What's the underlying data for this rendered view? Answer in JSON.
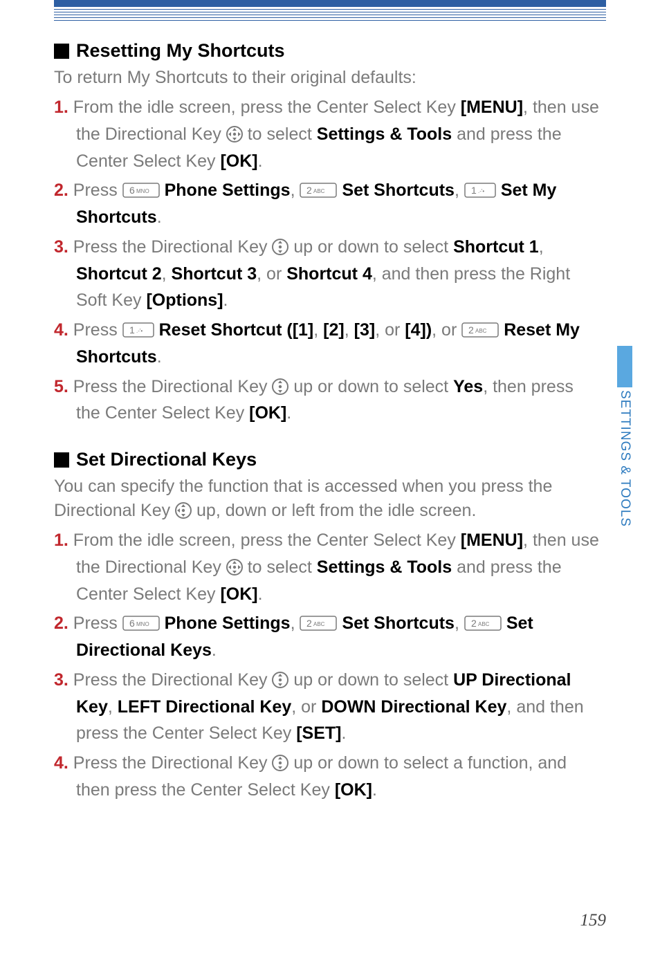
{
  "section1": {
    "title": "Resetting My Shortcuts",
    "intro": "To return My Shortcuts to their original defaults:",
    "steps": [
      {
        "n": "1.",
        "pre": "From the idle screen, press the Center Select Key ",
        "b1": "[MENU]",
        "mid1": ", then use the Directional Key ",
        "icon": "dpad4",
        "mid2": " to select ",
        "b2": "Settings & Tools",
        "mid3": " and press the Center Select Key ",
        "b3": "[OK]",
        "tail": "."
      },
      {
        "n": "2.",
        "pre": "Press ",
        "k1": "6MNO",
        "b1": "Phone Settings",
        "mid1": ", ",
        "k2": "2ABC",
        "b2": "Set Shortcuts",
        "mid2": ", ",
        "k3": "1",
        "b3": "Set My Shortcuts",
        "tail": "."
      },
      {
        "n": "3.",
        "pre": "Press the Directional Key ",
        "icon": "dpad2",
        "mid1": " up or down to select ",
        "b1": "Shortcut 1",
        "mid2": ", ",
        "b2": "Shortcut 2",
        "mid3": ", ",
        "b3": "Shortcut 3",
        "mid4": ", or ",
        "b4": "Shortcut 4",
        "mid5": ", and then press the Right Soft Key ",
        "b5": "[Options]",
        "tail": "."
      },
      {
        "n": "4.",
        "pre": "Press ",
        "k1": "1",
        "b1": "Reset Shortcut ([1]",
        "mid1": ", ",
        "b2": "[2]",
        "mid2": ", ",
        "b3": "[3]",
        "mid3": ", or ",
        "b4": "[4])",
        "mid4": ", or ",
        "k2": "2ABC",
        "b5": "Reset My Shortcuts",
        "tail": "."
      },
      {
        "n": "5.",
        "pre": "Press the Directional Key ",
        "icon": "dpad2",
        "mid1": " up or down to select ",
        "b1": "Yes",
        "mid2": ", then press the Center Select Key ",
        "b2": "[OK]",
        "tail": "."
      }
    ]
  },
  "section2": {
    "title": "Set Directional Keys",
    "intro_pre": "You can specify the function that is accessed when you press the Directional Key ",
    "intro_icon": "dpad3",
    "intro_post": " up, down or left from the idle screen.",
    "steps": [
      {
        "n": "1.",
        "pre": "From the idle screen, press the Center Select Key ",
        "b1": "[MENU]",
        "mid1": ", then use the Directional Key ",
        "icon": "dpad4",
        "mid2": " to select ",
        "b2": "Settings & Tools",
        "mid3": " and press the Center Select Key ",
        "b3": "[OK]",
        "tail": "."
      },
      {
        "n": "2.",
        "pre": "Press ",
        "k1": "6MNO",
        "b1": "Phone Settings",
        "mid1": ", ",
        "k2": "2ABC",
        "b2": "Set Shortcuts",
        "mid2": ", ",
        "k3": "2ABC",
        "b3": "Set Directional Keys",
        "tail": "."
      },
      {
        "n": "3.",
        "pre": "Press the Directional Key ",
        "icon": "dpad2",
        "mid1": " up or down to select ",
        "b1": "UP Directional Key",
        "mid2": ", ",
        "b2": "LEFT Directional Key",
        "mid3": ", or ",
        "b3": "DOWN Directional Key",
        "mid4": ", and then press the Center Select Key ",
        "b4": "[SET]",
        "tail": "."
      },
      {
        "n": "4.",
        "pre": "Press the Directional Key ",
        "icon": "dpad2",
        "mid1": " up or down to select a function, and then press the Center Select Key ",
        "b1": "[OK]",
        "tail": "."
      }
    ]
  },
  "sidetab": "SETTINGS & TOOLS",
  "pagenum": "159",
  "keycaps": {
    "6MNO": {
      "big": "6",
      "small": "MNO"
    },
    "2ABC": {
      "big": "2",
      "small": "ABC"
    },
    "1": {
      "big": "1",
      "small": ".-'•"
    }
  },
  "colors": {
    "header": "#2e5fa3",
    "num": "#c1272d",
    "body": "#7a7a7a",
    "bold": "#000",
    "tab_bar": "#5aa8e0",
    "tab_txt": "#2e7bbf"
  }
}
